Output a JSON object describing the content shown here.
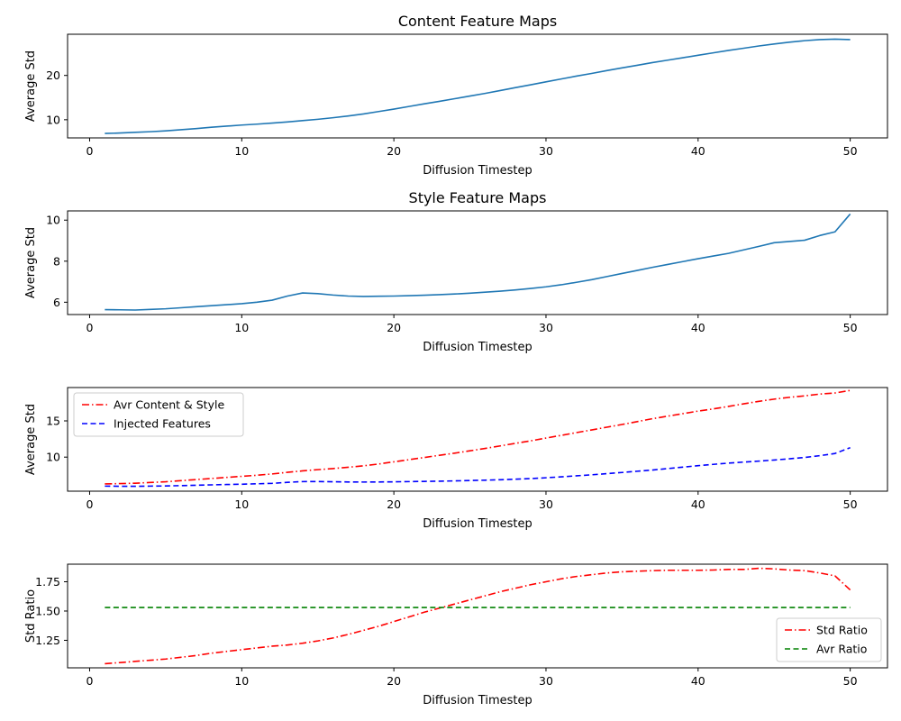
{
  "chart_data": [
    {
      "type": "line",
      "title": "Content Feature Maps",
      "xlabel": "Diffusion Timestep",
      "ylabel": "Average Std",
      "xlim": [
        -1.45,
        52.45
      ],
      "ylim": [
        5.9,
        29.3
      ],
      "xticks": [
        0,
        10,
        20,
        30,
        40,
        50
      ],
      "yticks": [
        10,
        20
      ],
      "legend": null,
      "grid": false,
      "series": [
        {
          "name": "",
          "color": "#1f77b4",
          "style": "solid",
          "x": [
            1,
            2,
            3,
            4,
            5,
            6,
            7,
            8,
            9,
            10,
            11,
            12,
            13,
            14,
            15,
            16,
            17,
            18,
            19,
            20,
            21,
            22,
            23,
            24,
            25,
            26,
            27,
            28,
            29,
            30,
            31,
            32,
            33,
            34,
            35,
            36,
            37,
            38,
            39,
            40,
            41,
            42,
            43,
            44,
            45,
            46,
            47,
            48,
            49,
            50
          ],
          "y": [
            6.9,
            7.0,
            7.15,
            7.3,
            7.5,
            7.75,
            8.0,
            8.3,
            8.55,
            8.8,
            9.0,
            9.25,
            9.5,
            9.8,
            10.1,
            10.45,
            10.85,
            11.3,
            11.85,
            12.4,
            13.0,
            13.6,
            14.15,
            14.75,
            15.35,
            15.95,
            16.6,
            17.25,
            17.9,
            18.55,
            19.2,
            19.85,
            20.45,
            21.1,
            21.7,
            22.3,
            22.9,
            23.45,
            24.0,
            24.55,
            25.1,
            25.65,
            26.15,
            26.65,
            27.1,
            27.5,
            27.85,
            28.1,
            28.2,
            28.1
          ]
        }
      ]
    },
    {
      "type": "line",
      "title": "Style Feature Maps",
      "xlabel": "Diffusion Timestep",
      "ylabel": "Average Std",
      "xlim": [
        -1.45,
        52.45
      ],
      "ylim": [
        5.4,
        10.45
      ],
      "xticks": [
        0,
        10,
        20,
        30,
        40,
        50
      ],
      "yticks": [
        6,
        8,
        10
      ],
      "legend": null,
      "grid": false,
      "series": [
        {
          "name": "",
          "color": "#1f77b4",
          "style": "solid",
          "x": [
            1,
            2,
            3,
            4,
            5,
            6,
            7,
            8,
            9,
            10,
            11,
            12,
            13,
            14,
            15,
            16,
            17,
            18,
            19,
            20,
            21,
            22,
            23,
            24,
            25,
            26,
            27,
            28,
            29,
            30,
            31,
            32,
            33,
            34,
            35,
            36,
            37,
            38,
            39,
            40,
            41,
            42,
            43,
            44,
            45,
            46,
            47,
            48,
            49,
            50
          ],
          "y": [
            5.64,
            5.63,
            5.62,
            5.65,
            5.68,
            5.73,
            5.78,
            5.83,
            5.88,
            5.93,
            6.0,
            6.1,
            6.3,
            6.45,
            6.42,
            6.35,
            6.3,
            6.28,
            6.29,
            6.3,
            6.32,
            6.34,
            6.37,
            6.4,
            6.44,
            6.49,
            6.54,
            6.6,
            6.67,
            6.75,
            6.85,
            6.97,
            7.1,
            7.25,
            7.4,
            7.55,
            7.7,
            7.84,
            7.98,
            8.12,
            8.25,
            8.38,
            8.55,
            8.72,
            8.9,
            8.96,
            9.02,
            9.25,
            9.43,
            10.3
          ]
        }
      ]
    },
    {
      "type": "line",
      "title": "",
      "xlabel": "Diffusion Timestep",
      "ylabel": "Average Std",
      "xlim": [
        -1.45,
        52.45
      ],
      "ylim": [
        5.3,
        19.6
      ],
      "xticks": [
        0,
        10,
        20,
        30,
        40,
        50
      ],
      "yticks": [
        10,
        15
      ],
      "legend": "upper-left",
      "grid": false,
      "series": [
        {
          "name": "Avr Content & Style",
          "color": "#ff0000",
          "style": "dashdot",
          "x": [
            1,
            2,
            3,
            4,
            5,
            6,
            7,
            8,
            9,
            10,
            11,
            12,
            13,
            14,
            15,
            16,
            17,
            18,
            19,
            20,
            21,
            22,
            23,
            24,
            25,
            26,
            27,
            28,
            29,
            30,
            31,
            32,
            33,
            34,
            35,
            36,
            37,
            38,
            39,
            40,
            41,
            42,
            43,
            44,
            45,
            46,
            47,
            48,
            49,
            50
          ],
          "y": [
            6.3,
            6.35,
            6.4,
            6.5,
            6.6,
            6.75,
            6.9,
            7.05,
            7.2,
            7.35,
            7.5,
            7.68,
            7.9,
            8.1,
            8.27,
            8.42,
            8.6,
            8.8,
            9.05,
            9.35,
            9.65,
            9.95,
            10.25,
            10.55,
            10.87,
            11.2,
            11.55,
            11.9,
            12.25,
            12.63,
            13.0,
            13.38,
            13.75,
            14.13,
            14.5,
            14.9,
            15.3,
            15.65,
            16.0,
            16.35,
            16.65,
            17.0,
            17.35,
            17.7,
            18.0,
            18.25,
            18.45,
            18.7,
            18.85,
            19.2
          ]
        },
        {
          "name": "Injected Features",
          "color": "#0000ff",
          "style": "dashed",
          "x": [
            1,
            2,
            3,
            4,
            5,
            6,
            7,
            8,
            9,
            10,
            11,
            12,
            13,
            14,
            15,
            16,
            17,
            18,
            19,
            20,
            21,
            22,
            23,
            24,
            25,
            26,
            27,
            28,
            29,
            30,
            31,
            32,
            33,
            34,
            35,
            36,
            37,
            38,
            39,
            40,
            41,
            42,
            43,
            44,
            45,
            46,
            47,
            48,
            49,
            50
          ],
          "y": [
            6.0,
            5.98,
            5.97,
            6.0,
            6.02,
            6.07,
            6.12,
            6.17,
            6.22,
            6.26,
            6.32,
            6.38,
            6.52,
            6.62,
            6.63,
            6.6,
            6.57,
            6.56,
            6.57,
            6.59,
            6.62,
            6.65,
            6.68,
            6.72,
            6.77,
            6.82,
            6.88,
            6.95,
            7.04,
            7.15,
            7.28,
            7.42,
            7.56,
            7.72,
            7.88,
            8.05,
            8.22,
            8.42,
            8.62,
            8.82,
            9.0,
            9.17,
            9.32,
            9.45,
            9.6,
            9.77,
            9.95,
            10.2,
            10.5,
            11.3
          ]
        }
      ]
    },
    {
      "type": "line",
      "title": "",
      "xlabel": "Diffusion Timestep",
      "ylabel": "Std Ratio",
      "xlim": [
        -1.45,
        52.45
      ],
      "ylim": [
        1.015,
        1.9
      ],
      "xticks": [
        0,
        10,
        20,
        30,
        40,
        50
      ],
      "yticks": [
        1.25,
        1.5,
        1.75
      ],
      "legend": "lower-right",
      "grid": false,
      "series": [
        {
          "name": "Std Ratio",
          "color": "#ff0000",
          "style": "dashdot",
          "x": [
            1,
            2,
            3,
            4,
            5,
            6,
            7,
            8,
            9,
            10,
            11,
            12,
            13,
            14,
            15,
            16,
            17,
            18,
            19,
            20,
            21,
            22,
            23,
            24,
            25,
            26,
            27,
            28,
            29,
            30,
            31,
            32,
            33,
            34,
            35,
            36,
            37,
            38,
            39,
            40,
            41,
            42,
            43,
            44,
            45,
            46,
            47,
            48,
            49,
            50
          ],
          "y": [
            1.05,
            1.06,
            1.07,
            1.08,
            1.09,
            1.105,
            1.12,
            1.14,
            1.155,
            1.17,
            1.185,
            1.2,
            1.21,
            1.225,
            1.245,
            1.27,
            1.3,
            1.335,
            1.37,
            1.41,
            1.45,
            1.49,
            1.525,
            1.56,
            1.595,
            1.63,
            1.665,
            1.695,
            1.725,
            1.75,
            1.775,
            1.795,
            1.81,
            1.825,
            1.835,
            1.84,
            1.845,
            1.848,
            1.848,
            1.848,
            1.85,
            1.855,
            1.855,
            1.865,
            1.86,
            1.85,
            1.845,
            1.825,
            1.8,
            1.68
          ]
        },
        {
          "name": "Avr Ratio",
          "color": "#008000",
          "style": "dashed",
          "x": [
            1,
            50
          ],
          "y": [
            1.53,
            1.53
          ]
        }
      ]
    }
  ]
}
